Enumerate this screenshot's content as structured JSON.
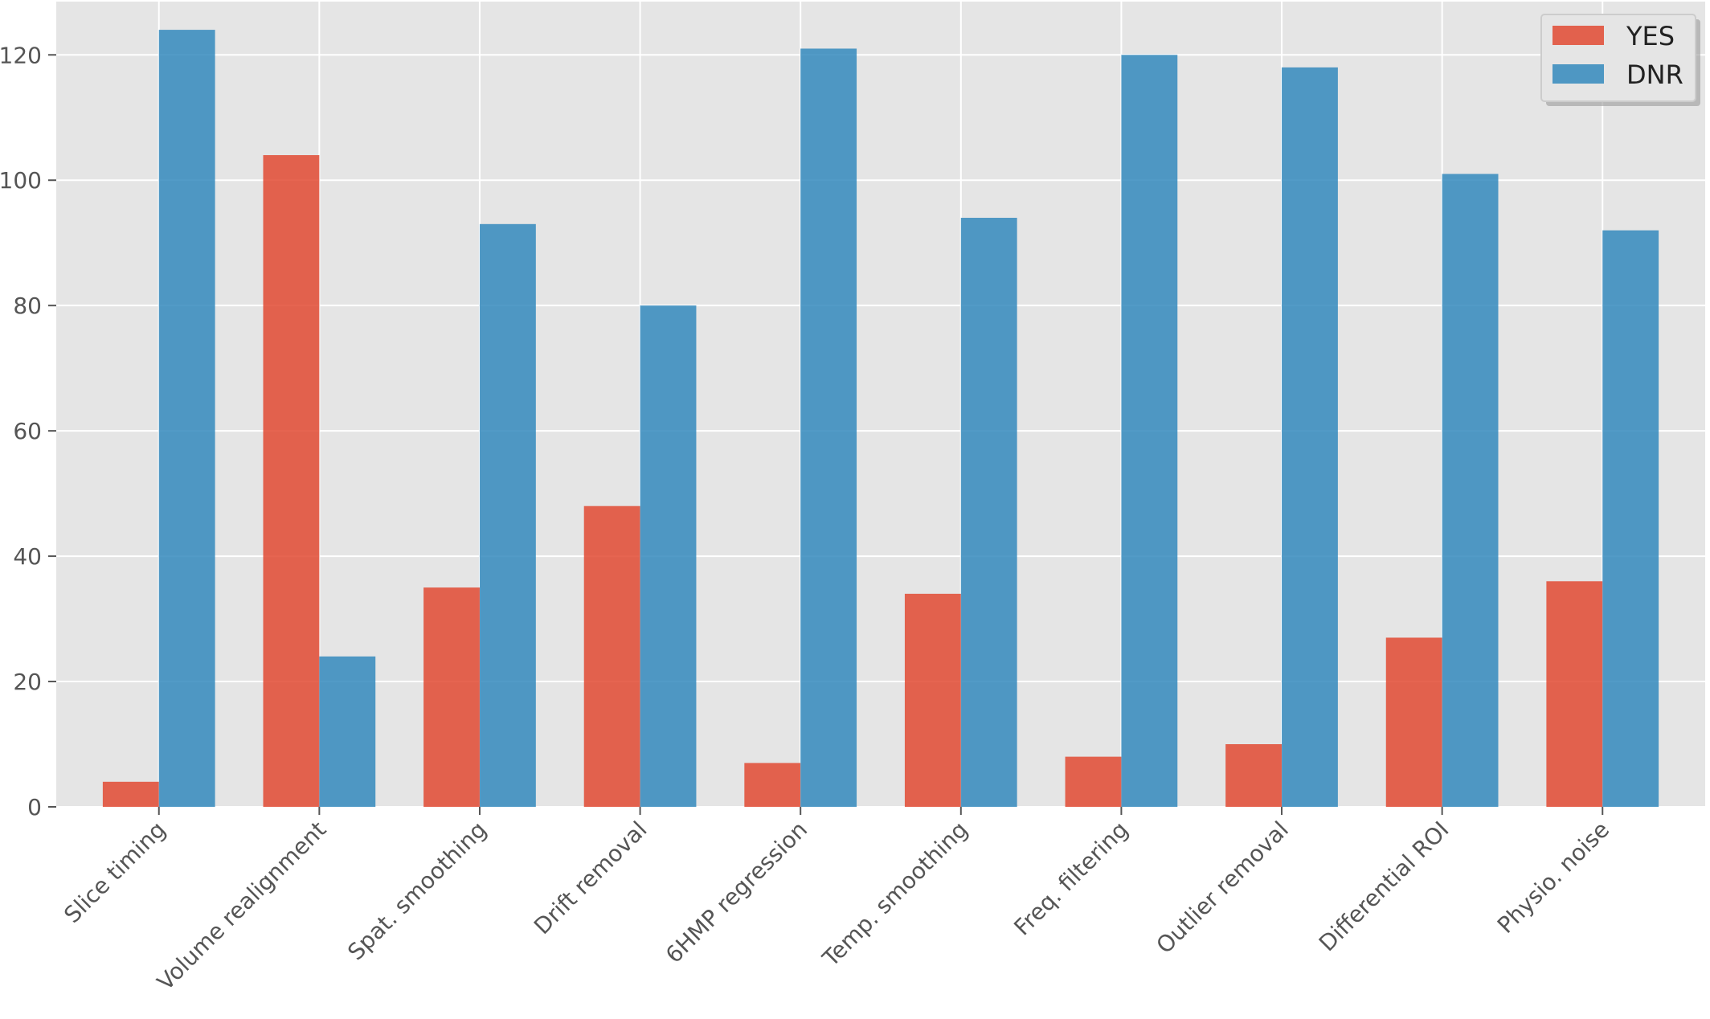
{
  "chart_data": {
    "type": "bar",
    "categories": [
      "Slice timing",
      "Volume realignment",
      "Spat. smoothing",
      "Drift removal",
      "6HMP regression",
      "Temp. smoothing",
      "Freq. filtering",
      "Outlier removal",
      "Differential ROI",
      "Physio. noise"
    ],
    "series": [
      {
        "name": "YES",
        "color": "#e24a33",
        "values": [
          4,
          104,
          35,
          48,
          7,
          34,
          8,
          10,
          27,
          36
        ]
      },
      {
        "name": "DNR",
        "color": "#348abd",
        "values": [
          124,
          24,
          93,
          80,
          121,
          94,
          120,
          118,
          101,
          92
        ]
      }
    ],
    "yticks": [
      0,
      20,
      40,
      60,
      80,
      100,
      120
    ],
    "ylim": [
      0,
      128.5
    ],
    "grid": true,
    "legend_position": "top-right",
    "plot_background": "#e5e5e5",
    "grid_color": "#ffffff"
  }
}
